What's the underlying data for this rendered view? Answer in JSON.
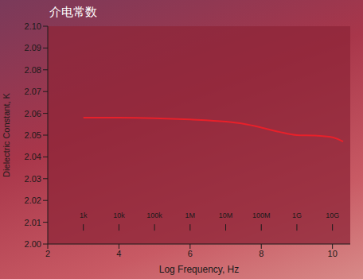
{
  "chart_data": {
    "type": "line",
    "title": "介电常数",
    "x_label": "Log Frequency, Hz",
    "y_label": "Dielectric Constant, K",
    "x": [
      3,
      4,
      5,
      6,
      7,
      7.5,
      8,
      8.5,
      9,
      9.5,
      10,
      10.3
    ],
    "series": [
      {
        "name": "K",
        "color": "#e8202a",
        "values": [
          2.058,
          2.058,
          2.0578,
          2.0572,
          2.0562,
          2.0552,
          2.0535,
          2.0515,
          2.05,
          2.0498,
          2.049,
          2.047
        ]
      }
    ],
    "xlim": [
      2,
      10.5
    ],
    "xticks": [
      2,
      4,
      6,
      8,
      10
    ],
    "ylim": [
      2.0,
      2.1
    ],
    "yticks": [
      {
        "value": 2.0,
        "label": "2.00"
      },
      2.01,
      2.02,
      2.03,
      2.04,
      2.05,
      2.06,
      2.07,
      2.08,
      2.09,
      {
        "value": 2.1,
        "label": "2.10"
      }
    ],
    "annotations": [
      {
        "text": "1k",
        "x": 3,
        "y": 2.012
      },
      {
        "text": "10k",
        "x": 4,
        "y": 2.012
      },
      {
        "text": "100k",
        "x": 5,
        "y": 2.012
      },
      {
        "text": "1M",
        "x": 6,
        "y": 2.012
      },
      {
        "text": "10M",
        "x": 7,
        "y": 2.012
      },
      {
        "text": "100M",
        "x": 8,
        "y": 2.012
      },
      {
        "text": "1G",
        "x": 9,
        "y": 2.012
      },
      {
        "text": "10G",
        "x": 10,
        "y": 2.012
      }
    ],
    "grid": false
  }
}
